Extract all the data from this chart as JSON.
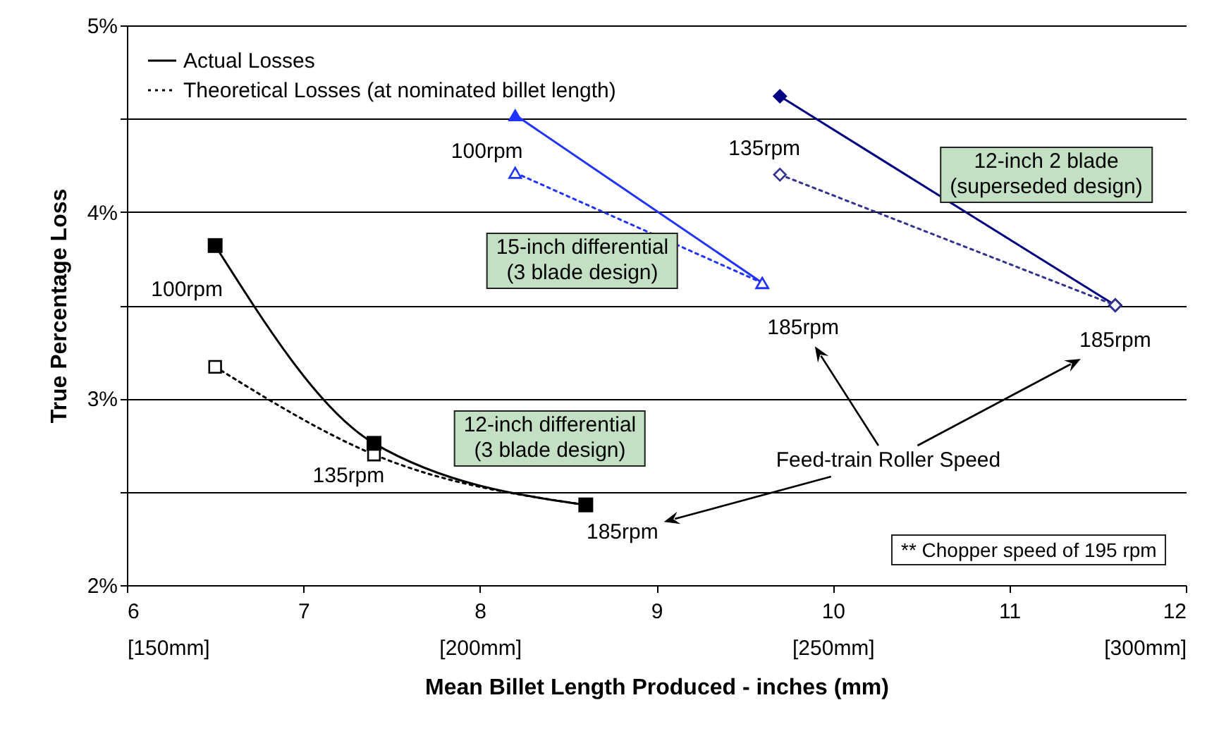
{
  "chart_data": {
    "type": "line",
    "xlabel": "Mean Billet Length Produced - inches (mm)",
    "ylabel": "True Percentage Loss",
    "xlim": [
      6,
      12
    ],
    "xticks": [
      {
        "value": 6,
        "label": "6\n[150mm]"
      },
      7,
      {
        "value": 8,
        "label": "8\n[200mm]"
      },
      9,
      {
        "value": 10,
        "label": "10\n[250mm]"
      },
      11,
      {
        "value": 12,
        "label": "12\n[300mm]"
      }
    ],
    "ylim": [
      2,
      5
    ],
    "yticks": [
      {
        "value": 2,
        "label": "2%"
      },
      {
        "value": 2.5,
        "label": null
      },
      {
        "value": 3,
        "label": "3%"
      },
      {
        "value": 3.5,
        "label": null
      },
      {
        "value": 4,
        "label": "4%"
      },
      {
        "value": 4.5,
        "label": null
      },
      {
        "value": 5,
        "label": "5%"
      }
    ],
    "grid": "y",
    "legend": "top left",
    "series": [
      {
        "name": "Actual Losses",
        "color": "#000000",
        "x": [
          6.5,
          7.4,
          8.6
        ],
        "values": [
          3.82,
          2.76,
          2.43
        ],
        "marker": "square",
        "line_style": "solid"
      },
      {
        "name": "Theoretical Losses (at nominated billet length)",
        "color": "#000000",
        "x": [
          6.5,
          7.4,
          8.6
        ],
        "values": [
          3.17,
          2.7,
          2.43
        ],
        "marker": "square",
        "line_style": "dotted"
      },
      {
        "color": "#2233ff",
        "x": [
          8.2,
          9.6
        ],
        "values": [
          4.21,
          3.62
        ],
        "marker": "triangle",
        "line_style": "dotted"
      },
      {
        "color": "#33338f",
        "x": [
          9.7,
          11.6
        ],
        "values": [
          4.2,
          3.5
        ],
        "marker": "diamond",
        "line_style": "dotted"
      },
      {
        "color": "#2233ff",
        "x": [
          8.2,
          9.6
        ],
        "values": [
          4.52,
          3.62
        ],
        "marker": "triangle",
        "line_style": "solid"
      },
      {
        "color": "#000080",
        "x": [
          9.7,
          11.6
        ],
        "values": [
          4.62,
          3.5
        ],
        "marker": "diamond",
        "line_style": "solid"
      }
    ],
    "annotations": [
      {
        "text": "100rpm",
        "x": 6.5,
        "y": 3.82
      },
      {
        "text": "135rpm",
        "x": 7.4,
        "y": 2.7
      },
      {
        "text": "185rpm",
        "x": 8.6,
        "y": 2.43
      },
      {
        "text": "100rpm",
        "x": 8.2,
        "y": 4.21
      },
      {
        "text": "185rpm",
        "x": 9.6,
        "y": 3.62
      },
      {
        "text": "135rpm",
        "x": 9.7,
        "y": 4.2
      },
      {
        "text": "185rpm",
        "x": 11.6,
        "y": 3.5
      },
      "15-inch differential\n(3 blade design)",
      "12-inch 2 blade\n(superseded design)",
      "12-inch differential\n(3 blade design)",
      "Feed-train Roller Speed",
      "** Chopper speed of 195 rpm"
    ]
  }
}
